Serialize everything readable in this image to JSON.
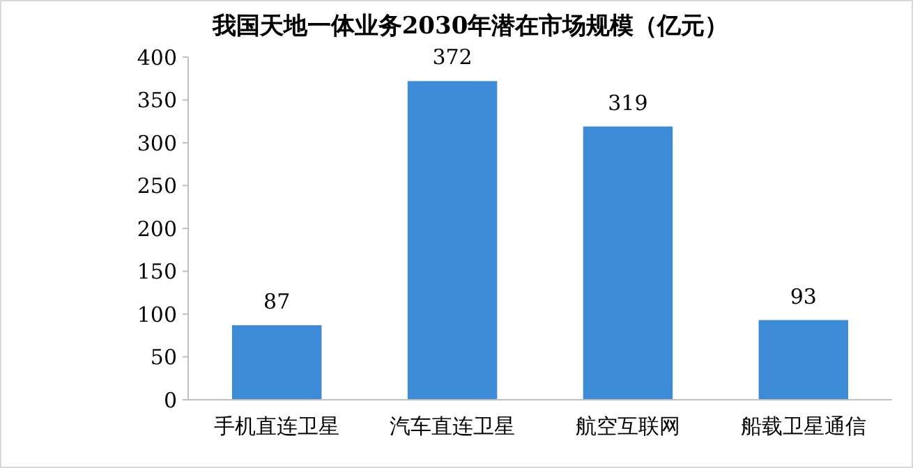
{
  "chart_data": {
    "type": "bar",
    "title": "我国天地一体业务2030年潜在市场规模（亿元）",
    "categories": [
      "手机直连卫星",
      "汽车直连卫星",
      "航空互联网",
      "船载卫星通信"
    ],
    "values": [
      87,
      372,
      319,
      93
    ],
    "color": "#3d8ad6",
    "ylim": [
      0,
      400
    ],
    "yticks": [
      0,
      50,
      100,
      150,
      200,
      250,
      300,
      350,
      400
    ],
    "grid": false,
    "data_labels": true
  }
}
